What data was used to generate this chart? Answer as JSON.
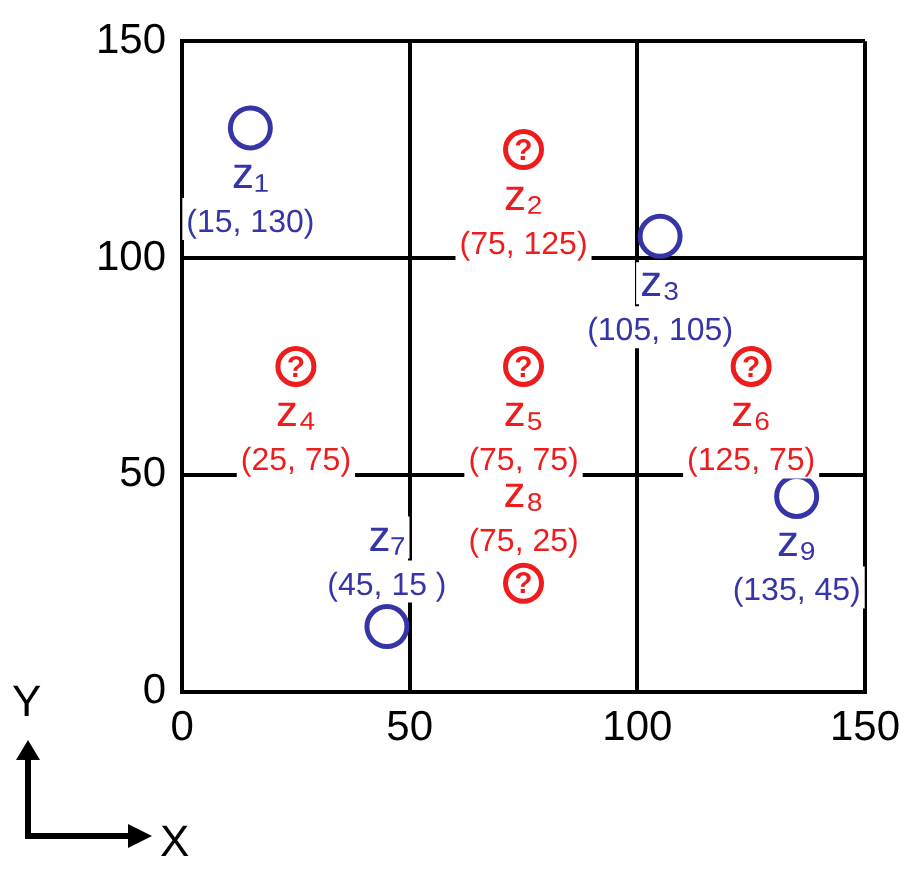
{
  "chart_data": {
    "type": "scatter",
    "xlabel": "X",
    "ylabel": "Y",
    "series": [
      {
        "color": "#3535a8",
        "x": [
          15,
          105,
          45,
          135
        ],
        "values": [
          130,
          105,
          15,
          45
        ],
        "value_labels": [
          "z₁\n(15, 130)",
          "z₃\n(105, 105)",
          "z₇\n(45, 15 )",
          "z₉\n(135, 45)"
        ]
      },
      {
        "color": "#ee1c1c",
        "x": [
          75,
          25,
          75,
          125,
          75
        ],
        "values": [
          125,
          75,
          75,
          75,
          25
        ],
        "value_labels": [
          "z₂\n(75, 125)",
          "z₄\n(25, 75)",
          "z₅\n(75, 75)",
          "z₆\n(125, 75)",
          "z₈\n(75, 25)"
        ]
      }
    ],
    "annotations": [
      {
        "text": "?",
        "x": 75,
        "y": 125
      },
      {
        "text": "?",
        "x": 25,
        "y": 75
      },
      {
        "text": "?",
        "x": 75,
        "y": 75
      },
      {
        "text": "?",
        "x": 125,
        "y": 75
      },
      {
        "text": "?",
        "x": 75,
        "y": 25
      }
    ],
    "xlim": [
      0,
      150
    ],
    "ylim": [
      0,
      150
    ],
    "xticks": [
      0,
      50,
      100,
      150
    ],
    "yticks": [
      0,
      50,
      100,
      150
    ],
    "grid": true,
    "legend": false,
    "marker": "circle"
  }
}
